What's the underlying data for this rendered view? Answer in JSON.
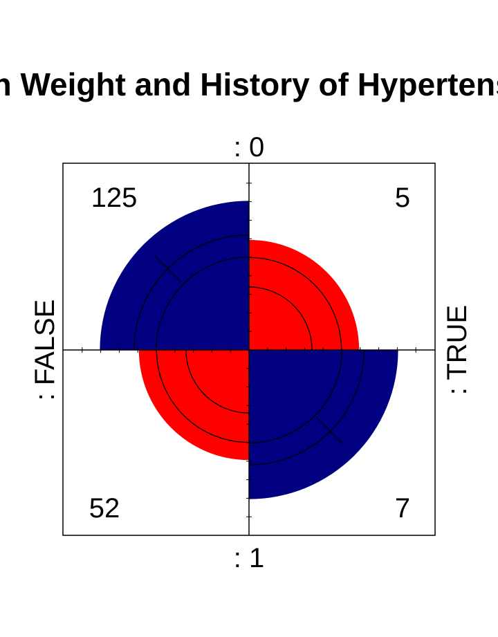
{
  "chart_data": {
    "type": "fourfold",
    "title": "Birth Weight and History of Hypertension",
    "row_variable_labels": [
      ": 0",
      ": 1"
    ],
    "col_variable_labels": [
      ": FALSE",
      ": TRUE"
    ],
    "cells": [
      {
        "row": ": 0",
        "col": ": FALSE",
        "count": 125,
        "color": "#000080"
      },
      {
        "row": ": 0",
        "col": ": TRUE",
        "count": 5,
        "color": "#FF0000"
      },
      {
        "row": ": 1",
        "col": ": FALSE",
        "count": 52,
        "color": "#FF0000"
      },
      {
        "row": ": 1",
        "col": ": TRUE",
        "count": 7,
        "color": "#000080"
      }
    ],
    "confidence_rings": true,
    "colors": {
      "positive": "#000080",
      "negative": "#FF0000",
      "frame": "#000000",
      "ring": "#000000",
      "background": "#FFFFFF"
    }
  }
}
